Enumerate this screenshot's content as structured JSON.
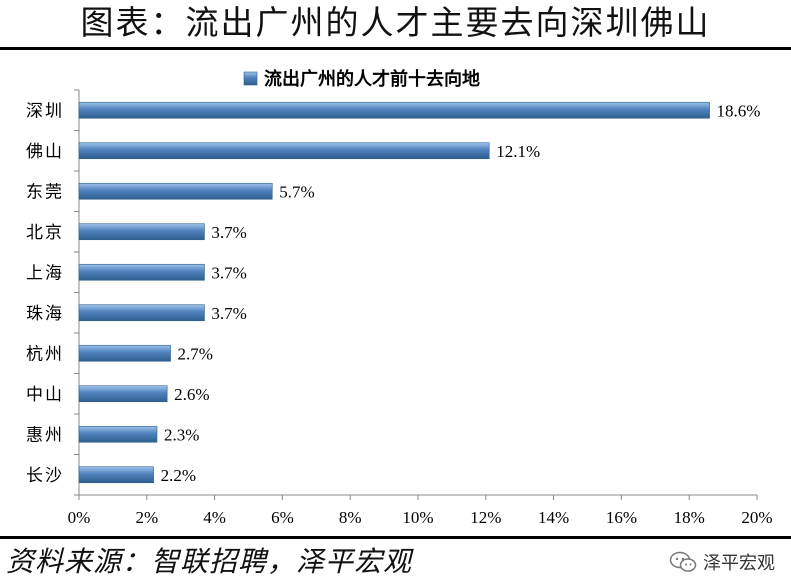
{
  "figure_title": "图表：流出广州的人才主要去向深圳佛山",
  "source": "资料来源：智联招聘，泽平宏观",
  "watermark": "泽平宏观",
  "colors": {
    "bar": "#4f81bd",
    "bar_edge": "#2f5f8f",
    "axis": "#888888",
    "text": "#000000"
  },
  "chart_data": {
    "type": "bar",
    "orientation": "horizontal",
    "title": "",
    "categories": [
      "深圳",
      "佛山",
      "东莞",
      "北京",
      "上海",
      "珠海",
      "杭州",
      "中山",
      "惠州",
      "长沙"
    ],
    "series": [
      {
        "name": "流出广州的人才前十去向地",
        "values": [
          18.6,
          12.1,
          5.7,
          3.7,
          3.7,
          3.7,
          2.7,
          2.6,
          2.3,
          2.2
        ]
      }
    ],
    "data_labels": [
      "18.6%",
      "12.1%",
      "5.7%",
      "3.7%",
      "3.7%",
      "3.7%",
      "2.7%",
      "2.6%",
      "2.3%",
      "2.2%"
    ],
    "xlim": [
      0,
      20
    ],
    "xticks": [
      0,
      2,
      4,
      6,
      8,
      10,
      12,
      14,
      16,
      18,
      20
    ],
    "xtick_labels": [
      "0%",
      "2%",
      "4%",
      "6%",
      "8%",
      "10%",
      "12%",
      "14%",
      "16%",
      "18%",
      "20%"
    ],
    "legend": "top-center",
    "grid": false
  }
}
